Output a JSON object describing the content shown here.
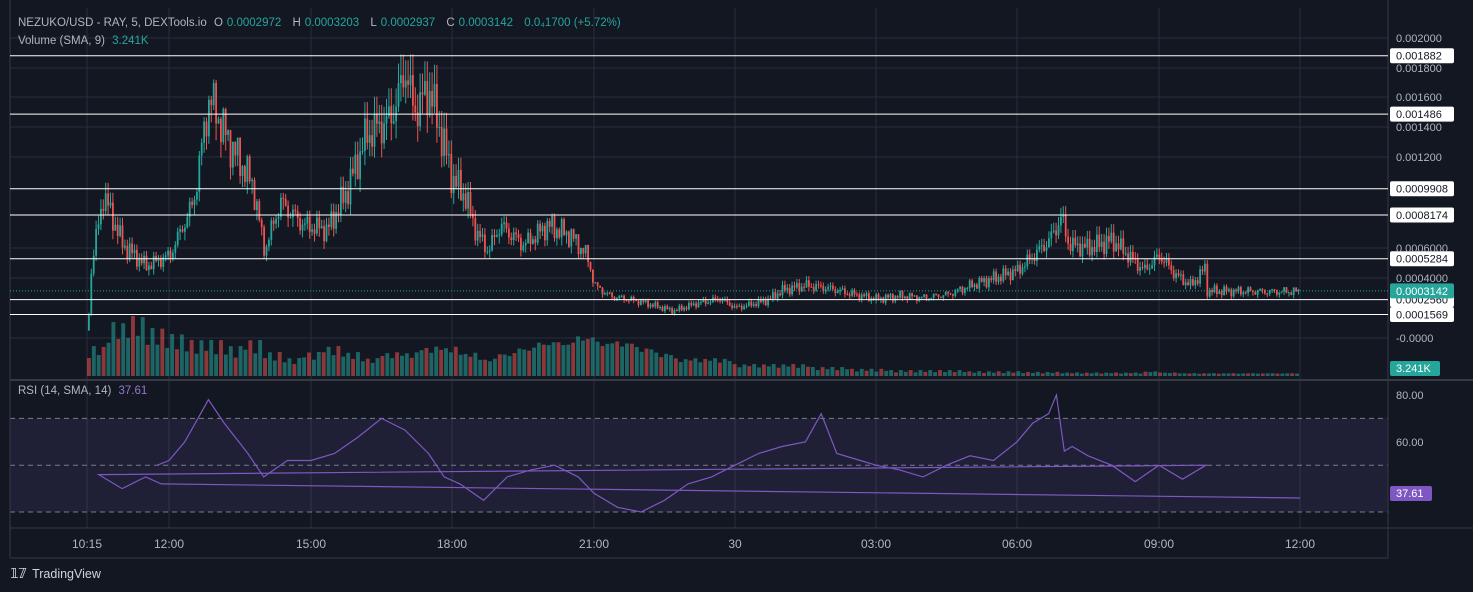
{
  "header": {
    "symbol": "NEZUKO/USD - RAY, 5, DEXTools.io",
    "open_label": "O",
    "open": "0.0002972",
    "high_label": "H",
    "high": "0.0003203",
    "low_label": "L",
    "low": "0.0002937",
    "close_label": "C",
    "close": "0.0003142",
    "change": "0.0₄1700 (+5.72%)",
    "volume_label": "Volume (SMA, 9)",
    "volume_value": "3.241K"
  },
  "rsi_header": {
    "label": "RSI (14, SMA, 14)",
    "value": "37.61"
  },
  "footer": {
    "brand": "TradingView"
  },
  "colors": {
    "up": "#26a69a",
    "down": "#ef5350",
    "rsi": "#7e57c2",
    "background": "#131722",
    "grid": "#2a2e39"
  },
  "chart_data": [
    {
      "type": "candlestick",
      "title": "NEZUKO/USD - RAY, 5, DEXTools.io",
      "x_ticks": [
        "10:15",
        "12:00",
        "15:00",
        "18:00",
        "21:00",
        "30",
        "03:00",
        "06:00",
        "09:00",
        "12:00"
      ],
      "y_ticks": [
        "0.002000",
        "0.001800",
        "0.001600",
        "0.001400",
        "0.001200",
        "0.0006000",
        "0.0004000",
        "-0.0000"
      ],
      "ylim": [
        -2e-05,
        0.00215
      ],
      "last_price": "0.0003142",
      "horizontal_lines": [
        0.001882,
        0.001486,
        0.0009908,
        0.0008174,
        0.0005284,
        0.000256,
        0.0001569
      ],
      "horizontal_line_labels": [
        "0.001882",
        "0.001486",
        "0.0009908",
        "0.0008174",
        "0.0005284",
        "0.0002560",
        "0.0001569"
      ],
      "close_path": [
        {
          "x": "10:15",
          "y": 5e-05
        },
        {
          "x": "10:20",
          "y": 0.0005
        },
        {
          "x": "10:35",
          "y": 0.00095
        },
        {
          "x": "11:00",
          "y": 0.00062
        },
        {
          "x": "11:30",
          "y": 0.00048
        },
        {
          "x": "12:00",
          "y": 0.00055
        },
        {
          "x": "12:30",
          "y": 0.0009
        },
        {
          "x": "12:50",
          "y": 0.0016
        },
        {
          "x": "13:15",
          "y": 0.0013
        },
        {
          "x": "13:45",
          "y": 0.00102
        },
        {
          "x": "14:00",
          "y": 0.00058
        },
        {
          "x": "14:20",
          "y": 0.0009
        },
        {
          "x": "14:50",
          "y": 0.00075
        },
        {
          "x": "15:20",
          "y": 0.00072
        },
        {
          "x": "15:45",
          "y": 0.00098
        },
        {
          "x": "16:10",
          "y": 0.00135
        },
        {
          "x": "16:40",
          "y": 0.00145
        },
        {
          "x": "16:50",
          "y": 0.0016
        },
        {
          "x": "17:00",
          "y": 0.0018
        },
        {
          "x": "17:10",
          "y": 0.0015
        },
        {
          "x": "17:30",
          "y": 0.00165
        },
        {
          "x": "17:45",
          "y": 0.00135
        },
        {
          "x": "18:00",
          "y": 0.00105
        },
        {
          "x": "18:15",
          "y": 0.00095
        },
        {
          "x": "18:30",
          "y": 0.0007
        },
        {
          "x": "18:45",
          "y": 0.00058
        },
        {
          "x": "19:00",
          "y": 0.00075
        },
        {
          "x": "19:30",
          "y": 0.00062
        },
        {
          "x": "20:00",
          "y": 0.00075
        },
        {
          "x": "20:30",
          "y": 0.00068
        },
        {
          "x": "20:50",
          "y": 0.00055
        },
        {
          "x": "21:00",
          "y": 0.00035
        },
        {
          "x": "21:20",
          "y": 0.00028
        },
        {
          "x": "22:00",
          "y": 0.00024
        },
        {
          "x": "22:40",
          "y": 0.00018
        },
        {
          "x": "23:10",
          "y": 0.00023
        },
        {
          "x": "23:40",
          "y": 0.00026
        },
        {
          "x": "00:00",
          "y": 0.0002
        },
        {
          "x": "00:40",
          "y": 0.00025
        },
        {
          "x": "01:00",
          "y": 0.00032
        },
        {
          "x": "01:30",
          "y": 0.00035
        },
        {
          "x": "02:00",
          "y": 0.00033
        },
        {
          "x": "02:30",
          "y": 0.00029
        },
        {
          "x": "03:00",
          "y": 0.00026
        },
        {
          "x": "03:30",
          "y": 0.00028
        },
        {
          "x": "04:00",
          "y": 0.00027
        },
        {
          "x": "04:30",
          "y": 0.00029
        },
        {
          "x": "05:00",
          "y": 0.00035
        },
        {
          "x": "05:30",
          "y": 0.0004
        },
        {
          "x": "06:00",
          "y": 0.00045
        },
        {
          "x": "06:20",
          "y": 0.00055
        },
        {
          "x": "06:40",
          "y": 0.00065
        },
        {
          "x": "06:55",
          "y": 0.0008
        },
        {
          "x": "07:05",
          "y": 0.00062
        },
        {
          "x": "07:30",
          "y": 0.0006
        },
        {
          "x": "08:00",
          "y": 0.00065
        },
        {
          "x": "08:20",
          "y": 0.00055
        },
        {
          "x": "08:40",
          "y": 0.00045
        },
        {
          "x": "09:00",
          "y": 0.00055
        },
        {
          "x": "09:20",
          "y": 0.00042
        },
        {
          "x": "09:40",
          "y": 0.00035
        },
        {
          "x": "10:00",
          "y": 0.00048
        },
        {
          "x": "10:30",
          "y": 0.00042
        },
        {
          "x": "11:00",
          "y": 0.00035
        },
        {
          "x": "11:20",
          "y": 0.00038
        },
        {
          "x": "11:40",
          "y": 0.00035
        },
        {
          "x": "12:00",
          "y": 0.00031
        }
      ]
    },
    {
      "type": "bar",
      "title": "Volume (SMA, 9)",
      "last_value": "3.241K",
      "profile": [
        5,
        9,
        10,
        8,
        7,
        6,
        6,
        5,
        6,
        4,
        3,
        4,
        5,
        4,
        3,
        4,
        4,
        5,
        5,
        4,
        3,
        4,
        5,
        6,
        6,
        7,
        6,
        6,
        5,
        4,
        3,
        3,
        3,
        2,
        2,
        2,
        2,
        1.5,
        1.5,
        1.2,
        1.2,
        1,
        1,
        1,
        1,
        0.8,
        0.8,
        0.8,
        0.7,
        0.7,
        0.6,
        0.6,
        0.6,
        0.6,
        0.8,
        0.6,
        0.5,
        0.5,
        0.5,
        0.5,
        0.5,
        0.5
      ]
    },
    {
      "type": "line",
      "title": "RSI (14, SMA, 14)",
      "last_value": "37.61",
      "y_ticks": [
        "80.00",
        "60.00"
      ],
      "ylim": [
        28,
        85
      ],
      "bands": [
        70,
        50,
        30
      ],
      "series": [
        {
          "name": "RSI",
          "x": [
            "11:45",
            "12:00",
            "12:20",
            "12:40",
            "12:50",
            "13:10",
            "13:40",
            "14:00",
            "14:30",
            "15:00",
            "15:30",
            "16:00",
            "16:30",
            "17:00",
            "17:30",
            "17:50",
            "18:10",
            "18:40",
            "19:10",
            "19:40",
            "20:10",
            "20:40",
            "21:00",
            "21:30",
            "22:00",
            "22:30",
            "23:00",
            "23:30",
            "00:00",
            "00:30",
            "01:00",
            "01:30",
            "01:50",
            "02:10",
            "02:40",
            "03:00",
            "03:30",
            "04:00",
            "04:30",
            "05:00",
            "05:30",
            "06:00",
            "06:20",
            "06:40",
            "06:50",
            "07:00",
            "07:10",
            "07:30",
            "08:00",
            "08:30",
            "09:00",
            "09:30",
            "10:00",
            "10:30",
            "11:00",
            "11:30",
            "11:50",
            "12:00"
          ],
          "y": [
            50,
            52,
            60,
            72,
            78,
            68,
            55,
            45,
            52,
            52,
            55,
            62,
            70,
            65,
            55,
            45,
            42,
            35,
            45,
            48,
            50,
            45,
            38,
            32,
            30,
            35,
            42,
            45,
            50,
            55,
            58,
            60,
            72,
            55,
            52,
            50,
            48,
            45,
            50,
            54,
            52,
            60,
            68,
            72,
            80,
            56,
            58,
            54,
            50,
            43,
            50,
            44,
            50,
            46,
            40,
            45,
            42,
            36
          ]
        }
      ]
    }
  ]
}
